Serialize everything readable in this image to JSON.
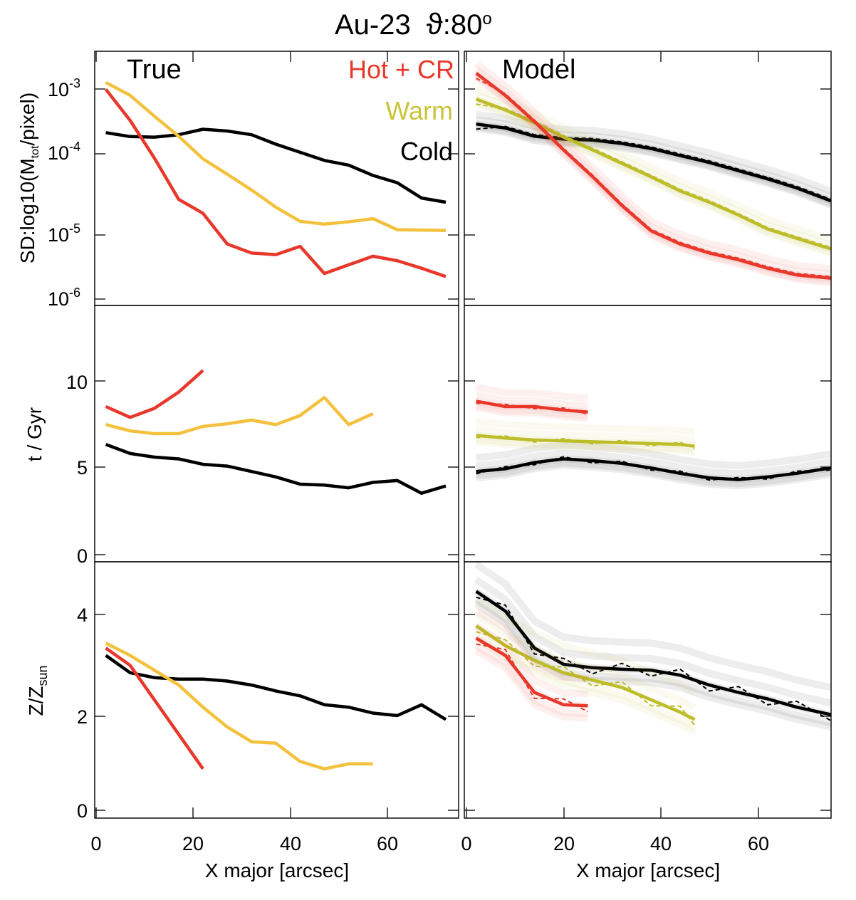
{
  "figure": {
    "title": "Au-23",
    "angle_symbol": "ϑ",
    "angle_value": ":80",
    "angle_unit": "o"
  },
  "colors": {
    "hot_true": "#e8382b",
    "warm_true": "#f4c13d",
    "cold_true": "#000000",
    "hot_model": "#e8382b",
    "warm_model": "#bdbd2a",
    "cold_model": "#000000",
    "legend_hot": "#e8382b",
    "legend_warm": "#c9c43a",
    "legend_cold": "#000000"
  },
  "legend": {
    "hot": "Hot + CR",
    "warm": "Warm",
    "cold": "Cold"
  },
  "panel_labels": {
    "left": "True",
    "right": "Model"
  },
  "axes": {
    "xlabel": "X major [arcsec]",
    "sd_ylabel_prefix": "SD:log10(M",
    "sd_ylabel_sub": "tot",
    "sd_ylabel_suffix": "/pixel)",
    "age_ylabel": "t / Gyr",
    "z_ylabel_main": "Z/Z",
    "z_ylabel_sub": "sun",
    "x_ticks_left": [
      "0",
      "20",
      "40",
      "60"
    ],
    "x_ticks_right": [
      "0",
      "20",
      "40",
      "60"
    ],
    "sd_ticks": [
      {
        "base": "10",
        "exp": "-3"
      },
      {
        "base": "10",
        "exp": "-4"
      },
      {
        "base": "10",
        "exp": "-5"
      },
      {
        "base": "10",
        "exp": "-6"
      }
    ],
    "age_ticks": [
      "10",
      "5",
      "0"
    ],
    "z_ticks": [
      "4",
      "2",
      "0"
    ]
  },
  "chart_data": [
    {
      "type": "line",
      "panel": "True - surface density",
      "title": "",
      "xlabel": "",
      "ylabel": "SD:log10(Mtot/pixel)",
      "yscale": "log",
      "xlim": [
        0,
        75
      ],
      "ylim": [
        8e-07,
        0.0025
      ],
      "series": [
        {
          "name": "Cold",
          "x": [
            2,
            7,
            12,
            17,
            22,
            27,
            32,
            37,
            42,
            47,
            52,
            57,
            62,
            67,
            72
          ],
          "values": [
            0.00019,
            0.000168,
            0.000165,
            0.000178,
            0.000212,
            0.0002,
            0.000178,
            0.000132,
            0.000102,
            7.9e-05,
            6.8e-05,
            4.9e-05,
            3.9e-05,
            2.4e-05,
            2.1e-05
          ]
        },
        {
          "name": "Warm",
          "x": [
            2,
            7,
            12,
            17,
            22,
            27,
            32,
            37,
            42,
            47,
            52,
            57,
            62,
            67,
            72
          ],
          "values": [
            0.00093,
            0.00062,
            0.00032,
            0.00017,
            8.3e-05,
            5.1e-05,
            3.1e-05,
            1.8e-05,
            1.15e-05,
            1.05e-05,
            1.13e-05,
            1.25e-05,
            8.8e-06,
            8.7e-06,
            8.6e-06
          ]
        },
        {
          "name": "Hot + CR",
          "x": [
            2,
            7,
            12,
            17,
            22,
            27,
            32,
            37,
            42,
            47,
            52,
            57,
            62,
            67,
            72
          ],
          "values": [
            0.00075,
            0.00028,
            8.5e-05,
            2.3e-05,
            1.48e-05,
            5.6e-06,
            4.2e-06,
            4e-06,
            5.2e-06,
            2.2e-06,
            2.9e-06,
            3.8e-06,
            3.3e-06,
            2.6e-06,
            2e-06
          ]
        }
      ]
    },
    {
      "type": "line",
      "panel": "Model - surface density",
      "title": "",
      "xlabel": "",
      "ylabel": "",
      "yscale": "log",
      "xlim": [
        0,
        75
      ],
      "ylim": [
        8e-07,
        0.0025
      ],
      "series": [
        {
          "name": "Cold",
          "x": [
            2,
            8,
            14,
            20,
            26,
            32,
            38,
            44,
            50,
            56,
            62,
            68,
            75
          ],
          "values": [
            0.00025,
            0.00022,
            0.00017,
            0.000155,
            0.00015,
            0.000135,
            0.000115,
            9.2e-05,
            7.4e-05,
            5.7e-05,
            4.4e-05,
            3.3e-05,
            2.2e-05
          ]
        },
        {
          "name": "Warm",
          "x": [
            2,
            8,
            14,
            20,
            26,
            32,
            38,
            44,
            50,
            56,
            62,
            68,
            75
          ],
          "values": [
            0.00055,
            0.00039,
            0.00026,
            0.000165,
            0.00011,
            7.2e-05,
            4.7e-05,
            3e-05,
            2.1e-05,
            1.4e-05,
            9e-06,
            6.7e-06,
            4.8e-06
          ]
        },
        {
          "name": "Hot + CR",
          "x": [
            2,
            8,
            14,
            20,
            26,
            32,
            38,
            44,
            50,
            56,
            62,
            68,
            75
          ],
          "values": [
            0.00125,
            0.00062,
            0.00027,
            0.00011,
            4.7e-05,
            1.9e-05,
            8.5e-06,
            5.6e-06,
            4.2e-06,
            3.4e-06,
            2.6e-06,
            2.1e-06,
            1.9e-06
          ]
        }
      ]
    },
    {
      "type": "line",
      "panel": "True - age",
      "title": "",
      "xlabel": "",
      "ylabel": "t / Gyr",
      "xlim": [
        0,
        75
      ],
      "ylim": [
        0,
        14.2
      ],
      "series": [
        {
          "name": "Cold",
          "x": [
            2,
            7,
            12,
            17,
            22,
            27,
            32,
            37,
            42,
            47,
            52,
            57,
            62,
            67,
            72
          ],
          "values": [
            6.5,
            6.0,
            5.8,
            5.7,
            5.4,
            5.3,
            5.0,
            4.7,
            4.3,
            4.25,
            4.1,
            4.4,
            4.5,
            3.8,
            4.2
          ]
        },
        {
          "name": "Warm",
          "x": [
            2,
            7,
            12,
            17,
            22,
            27,
            32,
            37,
            42,
            47,
            52,
            57
          ],
          "values": [
            7.6,
            7.25,
            7.1,
            7.1,
            7.5,
            7.65,
            7.85,
            7.6,
            8.1,
            9.1,
            7.6,
            8.2
          ]
        },
        {
          "name": "Hot + CR",
          "x": [
            2,
            7,
            12,
            17,
            22
          ],
          "values": [
            8.6,
            8.0,
            8.5,
            9.4,
            10.6
          ]
        }
      ]
    },
    {
      "type": "line",
      "panel": "Model - age",
      "title": "",
      "xlabel": "",
      "ylabel": "",
      "xlim": [
        0,
        75
      ],
      "ylim": [
        0,
        14.2
      ],
      "series": [
        {
          "name": "Cold",
          "x": [
            2,
            8,
            14,
            20,
            26,
            32,
            38,
            44,
            50,
            56,
            62,
            68,
            75
          ],
          "values": [
            5.0,
            5.15,
            5.5,
            5.7,
            5.6,
            5.45,
            5.2,
            4.9,
            4.65,
            4.55,
            4.7,
            4.9,
            5.2
          ]
        },
        {
          "name": "Warm",
          "x": [
            2,
            8,
            14,
            20,
            26,
            32,
            38,
            44,
            47
          ],
          "values": [
            7.0,
            6.85,
            6.75,
            6.7,
            6.65,
            6.6,
            6.55,
            6.5,
            6.4
          ]
        },
        {
          "name": "Hot + CR",
          "x": [
            2,
            8,
            14,
            20,
            25
          ],
          "values": [
            8.9,
            8.6,
            8.6,
            8.4,
            8.3
          ]
        }
      ]
    },
    {
      "type": "line",
      "panel": "True - metallicity",
      "title": "",
      "xlabel": "X major [arcsec]",
      "ylabel": "Z/Zsun",
      "xlim": [
        0,
        75
      ],
      "ylim": [
        -0.2,
        5.0
      ],
      "series": [
        {
          "name": "Cold",
          "x": [
            2,
            7,
            12,
            17,
            22,
            27,
            32,
            37,
            42,
            47,
            52,
            57,
            62,
            67,
            72
          ],
          "values": [
            3.1,
            2.75,
            2.65,
            2.62,
            2.62,
            2.58,
            2.5,
            2.38,
            2.28,
            2.1,
            2.05,
            1.93,
            1.88,
            2.1,
            1.8
          ]
        },
        {
          "name": "Warm",
          "x": [
            2,
            7,
            12,
            17,
            22,
            27,
            32,
            37,
            42,
            47,
            52,
            57
          ],
          "values": [
            3.35,
            3.1,
            2.8,
            2.5,
            2.05,
            1.65,
            1.35,
            1.32,
            0.95,
            0.8,
            0.9,
            0.9
          ]
        },
        {
          "name": "Hot + CR",
          "x": [
            2,
            7,
            12,
            17,
            22
          ],
          "values": [
            3.25,
            2.9,
            2.2,
            1.5,
            0.8
          ]
        }
      ]
    },
    {
      "type": "line",
      "panel": "Model - metallicity",
      "title": "",
      "xlabel": "X major [arcsec]",
      "ylabel": "",
      "xlim": [
        0,
        75
      ],
      "ylim": [
        -0.2,
        5.0
      ],
      "series": [
        {
          "name": "Cold",
          "x": [
            2,
            8,
            14,
            20,
            26,
            32,
            38,
            44,
            50,
            56,
            62,
            68,
            75
          ],
          "values": [
            4.4,
            4.0,
            3.25,
            2.92,
            2.85,
            2.82,
            2.8,
            2.7,
            2.5,
            2.35,
            2.22,
            2.05,
            1.9
          ]
        },
        {
          "name": "Warm",
          "x": [
            2,
            8,
            14,
            20,
            26,
            32,
            38,
            44,
            47
          ],
          "values": [
            3.7,
            3.3,
            3.0,
            2.75,
            2.6,
            2.45,
            2.2,
            1.95,
            1.8
          ]
        },
        {
          "name": "Hot + CR",
          "x": [
            2,
            8,
            14,
            20,
            25
          ],
          "values": [
            3.45,
            3.1,
            2.35,
            2.1,
            2.08
          ]
        }
      ]
    }
  ]
}
